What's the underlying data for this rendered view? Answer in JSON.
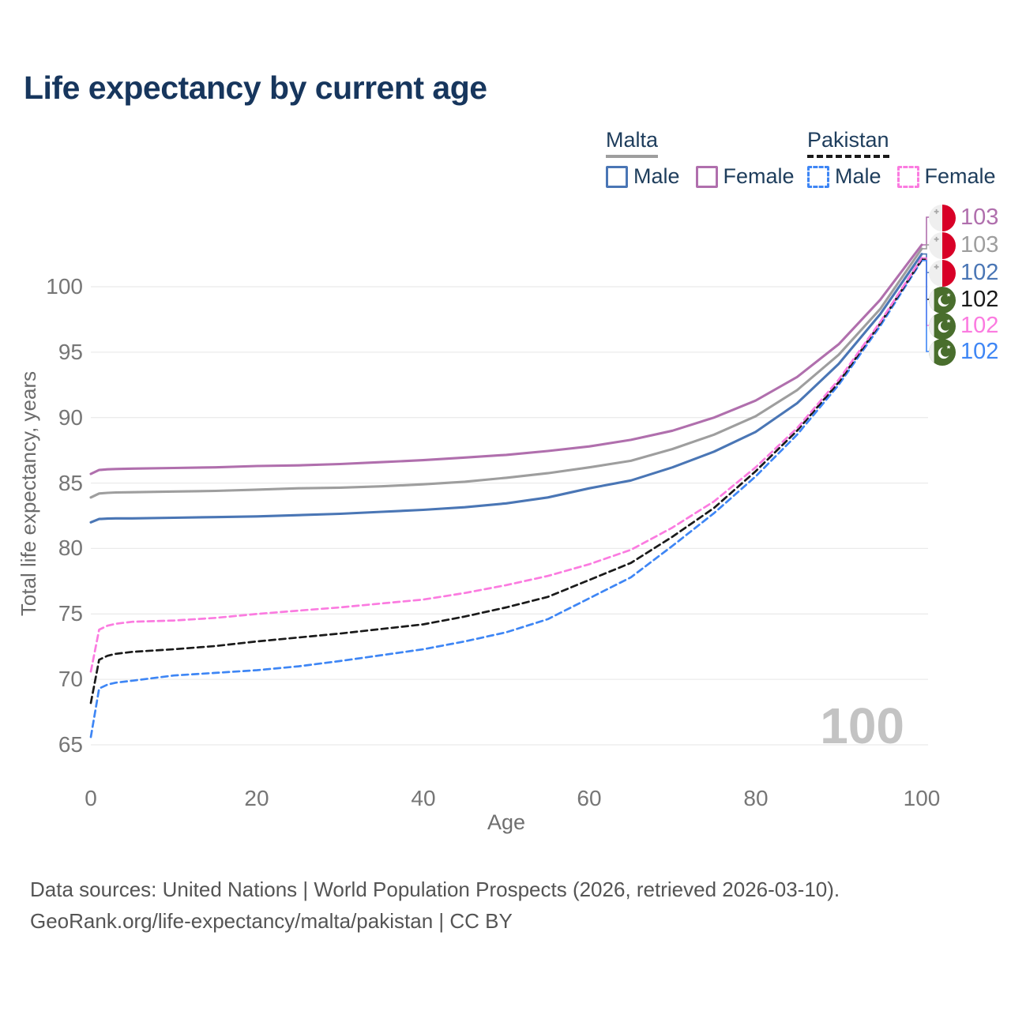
{
  "title": "Life expectancy by current age",
  "legend": {
    "groups": [
      {
        "name": "Malta",
        "line_style": "solid",
        "line_color": "#9e9e9e",
        "items": [
          {
            "label": "Male",
            "color": "#4a76b5",
            "style": "solid"
          },
          {
            "label": "Female",
            "color": "#b06fad",
            "style": "solid"
          }
        ]
      },
      {
        "name": "Pakistan",
        "line_style": "dashed",
        "line_color": "#1a1a1a",
        "items": [
          {
            "label": "Male",
            "color": "#3e86f5",
            "style": "dashed"
          },
          {
            "label": "Female",
            "color": "#fb7be0",
            "style": "dashed"
          }
        ]
      }
    ]
  },
  "axes": {
    "xlabel": "Age",
    "ylabel": "Total life expectancy, years",
    "xticks": [
      "0",
      "20",
      "40",
      "60",
      "80",
      "100"
    ],
    "yticks": [
      "65",
      "70",
      "75",
      "80",
      "85",
      "90",
      "95",
      "100"
    ]
  },
  "watermark": "100",
  "end_labels": [
    {
      "value": "103",
      "color": "#b06fad",
      "flag": "malta",
      "series": "Malta Female"
    },
    {
      "value": "103",
      "color": "#9e9e9e",
      "flag": "malta",
      "series": "Malta Both sexes"
    },
    {
      "value": "102",
      "color": "#4a76b5",
      "flag": "malta",
      "series": "Malta Male"
    },
    {
      "value": "102",
      "color": "#1a1a1a",
      "flag": "pakistan",
      "series": "Pakistan Both sexes"
    },
    {
      "value": "102",
      "color": "#fb7be0",
      "flag": "pakistan",
      "series": "Pakistan Female"
    },
    {
      "value": "102",
      "color": "#3e86f5",
      "flag": "pakistan",
      "series": "Pakistan Male"
    }
  ],
  "footer": {
    "line1": "Data sources: United Nations | World Population Prospects (2026, retrieved 2026-03-10).",
    "line2": "GeoRank.org/life-expectancy/malta/pakistan | CC BY"
  },
  "chart_data": {
    "type": "line",
    "title": "Life expectancy by current age",
    "xlabel": "Age",
    "ylabel": "Total life expectancy, years",
    "xlim": [
      0,
      100
    ],
    "ylim": [
      65,
      103.5
    ],
    "grid": "horizontal-only",
    "legend_position": "top-right",
    "x": [
      0,
      1,
      2,
      3,
      5,
      10,
      15,
      20,
      25,
      30,
      35,
      40,
      45,
      50,
      55,
      60,
      65,
      70,
      75,
      80,
      85,
      90,
      95,
      100
    ],
    "series": [
      {
        "name": "Malta Female",
        "country": "Malta",
        "sex": "Female",
        "color": "#b06fad",
        "dash": false,
        "end_label": 103,
        "values": [
          85.7,
          86.0,
          86.05,
          86.07,
          86.1,
          86.15,
          86.2,
          86.3,
          86.35,
          86.45,
          86.6,
          86.75,
          86.95,
          87.15,
          87.45,
          87.8,
          88.3,
          89.0,
          90.0,
          91.3,
          93.1,
          95.6,
          99.0,
          103.2
        ]
      },
      {
        "name": "Malta Both sexes",
        "country": "Malta",
        "sex": "Both",
        "color": "#9e9e9e",
        "dash": false,
        "end_label": 103,
        "values": [
          83.9,
          84.2,
          84.25,
          84.28,
          84.3,
          84.35,
          84.4,
          84.5,
          84.6,
          84.65,
          84.75,
          84.9,
          85.1,
          85.4,
          85.75,
          86.2,
          86.7,
          87.6,
          88.7,
          90.1,
          92.1,
          94.8,
          98.3,
          102.9
        ]
      },
      {
        "name": "Malta Male",
        "country": "Malta",
        "sex": "Male",
        "color": "#4a76b5",
        "dash": false,
        "end_label": 102,
        "values": [
          82.0,
          82.25,
          82.28,
          82.3,
          82.3,
          82.35,
          82.4,
          82.45,
          82.55,
          82.65,
          82.8,
          82.95,
          83.15,
          83.45,
          83.9,
          84.6,
          85.2,
          86.2,
          87.4,
          88.9,
          91.1,
          94.1,
          97.9,
          102.5
        ]
      },
      {
        "name": "Pakistan Both sexes",
        "country": "Pakistan",
        "sex": "Both",
        "color": "#1a1a1a",
        "dash": true,
        "end_label": 102,
        "values": [
          68.2,
          71.5,
          71.8,
          71.95,
          72.1,
          72.3,
          72.55,
          72.9,
          73.2,
          73.5,
          73.85,
          74.2,
          74.8,
          75.5,
          76.3,
          77.6,
          78.9,
          80.9,
          83.1,
          85.9,
          89.0,
          92.7,
          97.2,
          102.1
        ]
      },
      {
        "name": "Pakistan Female",
        "country": "Pakistan",
        "sex": "Female",
        "color": "#fb7be0",
        "dash": true,
        "end_label": 102,
        "values": [
          70.6,
          73.8,
          74.1,
          74.25,
          74.4,
          74.5,
          74.7,
          75.0,
          75.25,
          75.5,
          75.8,
          76.1,
          76.6,
          77.2,
          77.9,
          78.8,
          79.9,
          81.6,
          83.6,
          86.2,
          89.2,
          92.9,
          97.3,
          102.2
        ]
      },
      {
        "name": "Pakistan Male",
        "country": "Pakistan",
        "sex": "Male",
        "color": "#3e86f5",
        "dash": true,
        "end_label": 102,
        "values": [
          65.6,
          69.3,
          69.6,
          69.75,
          69.9,
          70.3,
          70.5,
          70.7,
          71.0,
          71.4,
          71.85,
          72.3,
          72.9,
          73.6,
          74.6,
          76.2,
          77.8,
          80.2,
          82.7,
          85.5,
          88.7,
          92.5,
          97.0,
          102.0
        ]
      }
    ]
  }
}
